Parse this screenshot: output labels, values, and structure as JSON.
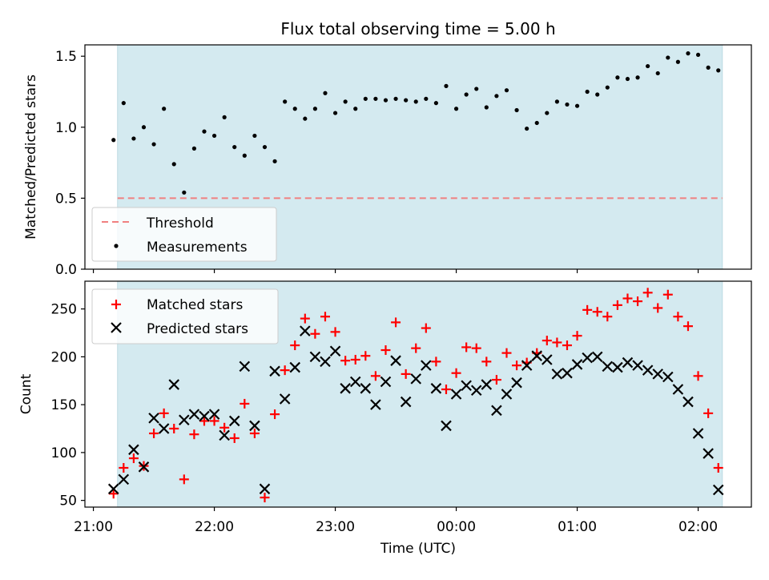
{
  "figure": {
    "title": "Flux total observing time = 5.00 h",
    "xlabel": "Time (UTC)",
    "x_tick_labels": [
      "21:00",
      "22:00",
      "23:00",
      "00:00",
      "01:00",
      "02:00"
    ],
    "shade_color": "#d4eaf0",
    "shade_range_hours": [
      21.2,
      26.2
    ]
  },
  "chart_data": [
    {
      "type": "scatter",
      "ylabel": "Matched/Predicted stars",
      "ylim": [
        0,
        1.58
      ],
      "yticks": [
        0.0,
        0.5,
        1.0,
        1.5
      ],
      "ytick_labels": [
        "0.0",
        "0.5",
        "1.0",
        "1.5"
      ],
      "legend_placement": "lower-left",
      "threshold": {
        "name": "Threshold",
        "value": 0.5,
        "color": "#f08080",
        "x_range": [
          21.2,
          26.2
        ]
      },
      "series": [
        {
          "name": "Measurements",
          "color": "#000000",
          "marker": "dot",
          "x": [
            "21:10",
            "21:15",
            "21:20",
            "21:25",
            "21:30",
            "21:35",
            "21:40",
            "21:45",
            "21:50",
            "21:55",
            "22:00",
            "22:05",
            "22:10",
            "22:15",
            "22:20",
            "22:25",
            "22:30",
            "22:35",
            "22:40",
            "22:45",
            "22:50",
            "22:55",
            "23:00",
            "23:05",
            "23:10",
            "23:15",
            "23:20",
            "23:25",
            "23:30",
            "23:35",
            "23:40",
            "23:45",
            "23:50",
            "23:55",
            "00:00",
            "00:05",
            "00:10",
            "00:15",
            "00:20",
            "00:25",
            "00:30",
            "00:35",
            "00:40",
            "00:45",
            "00:50",
            "00:55",
            "01:00",
            "01:05",
            "01:10",
            "01:15",
            "01:20",
            "01:25",
            "01:30",
            "01:35",
            "01:40",
            "01:45",
            "01:50",
            "01:55",
            "02:00",
            "02:05",
            "02:10"
          ],
          "y": [
            0.91,
            1.17,
            0.92,
            1.0,
            0.88,
            1.13,
            0.74,
            0.54,
            0.85,
            0.97,
            0.94,
            1.07,
            0.86,
            0.8,
            0.94,
            0.86,
            0.76,
            1.18,
            1.13,
            1.06,
            1.13,
            1.24,
            1.1,
            1.18,
            1.13,
            1.2,
            1.2,
            1.19,
            1.2,
            1.19,
            1.18,
            1.2,
            1.17,
            1.29,
            1.13,
            1.23,
            1.27,
            1.14,
            1.22,
            1.26,
            1.12,
            0.99,
            1.03,
            1.1,
            1.18,
            1.16,
            1.15,
            1.25,
            1.23,
            1.28,
            1.35,
            1.34,
            1.35,
            1.43,
            1.38,
            1.49,
            1.46,
            1.52,
            1.51,
            1.42,
            1.4
          ]
        }
      ]
    },
    {
      "type": "scatter",
      "ylabel": "Count",
      "ylim": [
        43,
        279
      ],
      "yticks": [
        50,
        100,
        150,
        200,
        250
      ],
      "ytick_labels": [
        "50",
        "100",
        "150",
        "200",
        "250"
      ],
      "legend_placement": "upper-left",
      "series": [
        {
          "name": "Matched stars",
          "color": "#ff0000",
          "marker": "plus",
          "x": [
            "21:10",
            "21:15",
            "21:20",
            "21:25",
            "21:30",
            "21:35",
            "21:40",
            "21:45",
            "21:50",
            "21:55",
            "22:00",
            "22:05",
            "22:10",
            "22:15",
            "22:20",
            "22:25",
            "22:30",
            "22:35",
            "22:40",
            "22:45",
            "22:50",
            "22:55",
            "23:00",
            "23:05",
            "23:10",
            "23:15",
            "23:20",
            "23:25",
            "23:30",
            "23:35",
            "23:40",
            "23:45",
            "23:50",
            "23:55",
            "00:00",
            "00:05",
            "00:10",
            "00:15",
            "00:20",
            "00:25",
            "00:30",
            "00:35",
            "00:40",
            "00:45",
            "00:50",
            "00:55",
            "01:00",
            "01:05",
            "01:10",
            "01:15",
            "01:20",
            "01:25",
            "01:30",
            "01:35",
            "01:40",
            "01:45",
            "01:50",
            "01:55",
            "02:00",
            "02:05",
            "02:10"
          ],
          "y": [
            57,
            84,
            94,
            86,
            120,
            141,
            125,
            72,
            119,
            133,
            133,
            126,
            115,
            151,
            120,
            53,
            140,
            186,
            212,
            240,
            224,
            242,
            226,
            196,
            197,
            201,
            180,
            207,
            236,
            182,
            209,
            230,
            195,
            166,
            183,
            210,
            209,
            195,
            176,
            204,
            191,
            194,
            204,
            217,
            215,
            212,
            222,
            249,
            247,
            242,
            254,
            261,
            258,
            267,
            251,
            265,
            242,
            232,
            180,
            141,
            84
          ]
        },
        {
          "name": "Predicted stars",
          "color": "#000000",
          "marker": "cross",
          "x": [
            "21:10",
            "21:15",
            "21:20",
            "21:25",
            "21:30",
            "21:35",
            "21:40",
            "21:45",
            "21:50",
            "21:55",
            "22:00",
            "22:05",
            "22:10",
            "22:15",
            "22:20",
            "22:25",
            "22:30",
            "22:35",
            "22:40",
            "22:45",
            "22:50",
            "22:55",
            "23:00",
            "23:05",
            "23:10",
            "23:15",
            "23:20",
            "23:25",
            "23:30",
            "23:35",
            "23:40",
            "23:45",
            "23:50",
            "23:55",
            "00:00",
            "00:05",
            "00:10",
            "00:15",
            "00:20",
            "00:25",
            "00:30",
            "00:35",
            "00:40",
            "00:45",
            "00:50",
            "00:55",
            "01:00",
            "01:05",
            "01:10",
            "01:15",
            "01:20",
            "01:25",
            "01:30",
            "01:35",
            "01:40",
            "01:45",
            "01:50",
            "01:55",
            "02:00",
            "02:05",
            "02:10"
          ],
          "y": [
            62,
            72,
            103,
            85,
            136,
            125,
            171,
            134,
            140,
            138,
            140,
            118,
            133,
            190,
            128,
            62,
            185,
            156,
            189,
            227,
            200,
            195,
            206,
            167,
            174,
            167,
            150,
            174,
            196,
            153,
            177,
            191,
            167,
            128,
            161,
            170,
            165,
            171,
            144,
            161,
            173,
            191,
            201,
            197,
            182,
            183,
            192,
            199,
            200,
            190,
            189,
            194,
            191,
            186,
            182,
            179,
            166,
            153,
            120,
            99,
            61
          ]
        }
      ]
    }
  ]
}
